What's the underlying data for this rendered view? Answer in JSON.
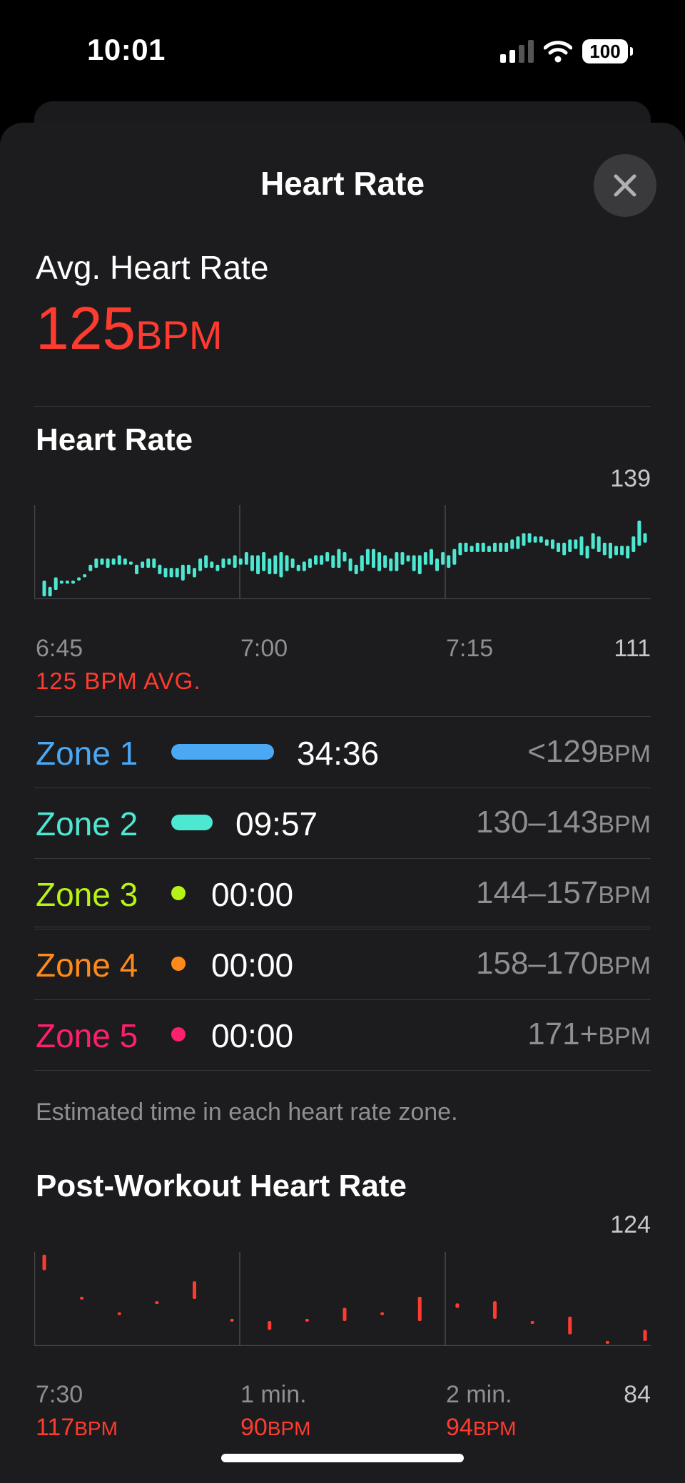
{
  "status_bar": {
    "time": "10:01",
    "battery": "100"
  },
  "sheet": {
    "title": "Heart Rate"
  },
  "average": {
    "label": "Avg. Heart Rate",
    "value": "125",
    "unit": "BPM"
  },
  "heart_rate_chart": {
    "title": "Heart Rate",
    "y_max_label": "139",
    "y_min_label": "111",
    "x_labels": [
      "6:45",
      "7:00",
      "7:15"
    ],
    "avg_caption": "125 BPM AVG.",
    "color": "#4de8d2"
  },
  "zones": [
    {
      "name": "Zone 1",
      "time": "34:36",
      "range": "<129",
      "unit": "BPM",
      "color": "#4aa8f5"
    },
    {
      "name": "Zone 2",
      "time": "09:57",
      "range": "130–143",
      "unit": "BPM",
      "color": "#4de8d2"
    },
    {
      "name": "Zone 3",
      "time": "00:00",
      "range": "144–157",
      "unit": "BPM",
      "color": "#b7f314"
    },
    {
      "name": "Zone 4",
      "time": "00:00",
      "range": "158–170",
      "unit": "BPM",
      "color": "#ff8a1c"
    },
    {
      "name": "Zone 5",
      "time": "00:00",
      "range": "171+",
      "unit": "BPM",
      "color": "#ff1f6f"
    }
  ],
  "zones_note": "Estimated time in each heart rate zone.",
  "post_workout": {
    "title": "Post-Workout Heart Rate",
    "y_max_label": "124",
    "y_min_label": "84",
    "labels": [
      {
        "time": "7:30",
        "value": "117",
        "unit": "BPM"
      },
      {
        "time": "1 min.",
        "value": "90",
        "unit": "BPM"
      },
      {
        "time": "2 min.",
        "value": "94",
        "unit": "BPM"
      }
    ],
    "color": "#ff3b2f"
  },
  "chart_data": [
    {
      "type": "bar",
      "title": "Heart Rate",
      "xlabel": "",
      "ylabel": "",
      "x_ticks": [
        "6:45",
        "7:00",
        "7:15"
      ],
      "ylim": [
        111,
        139
      ],
      "grid": true,
      "note": "min/max range bars per interval",
      "series": [
        {
          "values": [
            [
              111,
              116
            ],
            [
              111,
              114
            ],
            [
              113,
              117
            ],
            [
              115,
              116
            ],
            [
              115,
              116
            ],
            [
              115,
              116
            ],
            [
              116,
              117
            ],
            [
              117,
              118
            ],
            [
              119,
              121
            ],
            [
              120,
              123
            ],
            [
              121,
              123
            ],
            [
              120,
              123
            ],
            [
              121,
              123
            ],
            [
              121,
              124
            ],
            [
              121,
              123
            ],
            [
              121,
              122
            ],
            [
              118,
              121
            ],
            [
              120,
              122
            ],
            [
              120,
              123
            ],
            [
              120,
              123
            ],
            [
              118,
              121
            ],
            [
              117,
              120
            ],
            [
              117,
              120
            ],
            [
              117,
              120
            ],
            [
              116,
              121
            ],
            [
              118,
              121
            ],
            [
              117,
              120
            ],
            [
              119,
              123
            ],
            [
              120,
              124
            ],
            [
              120,
              122
            ],
            [
              119,
              121
            ],
            [
              120,
              123
            ],
            [
              121,
              123
            ],
            [
              120,
              124
            ],
            [
              121,
              123
            ],
            [
              121,
              125
            ],
            [
              119,
              124
            ],
            [
              118,
              124
            ],
            [
              119,
              125
            ],
            [
              118,
              123
            ],
            [
              118,
              124
            ],
            [
              117,
              125
            ],
            [
              119,
              124
            ],
            [
              120,
              123
            ],
            [
              119,
              121
            ],
            [
              119,
              122
            ],
            [
              120,
              123
            ],
            [
              121,
              124
            ],
            [
              121,
              124
            ],
            [
              122,
              125
            ],
            [
              120,
              124
            ],
            [
              120,
              126
            ],
            [
              122,
              125
            ],
            [
              119,
              123
            ],
            [
              118,
              121
            ],
            [
              119,
              124
            ],
            [
              121,
              126
            ],
            [
              120,
              126
            ],
            [
              119,
              125
            ],
            [
              120,
              124
            ],
            [
              119,
              123
            ],
            [
              119,
              125
            ],
            [
              121,
              125
            ],
            [
              122,
              124
            ],
            [
              119,
              124
            ],
            [
              118,
              124
            ],
            [
              121,
              125
            ],
            [
              121,
              126
            ],
            [
              119,
              123
            ],
            [
              121,
              125
            ],
            [
              120,
              124
            ],
            [
              121,
              126
            ],
            [
              124,
              128
            ],
            [
              125,
              128
            ],
            [
              125,
              127
            ],
            [
              125,
              128
            ],
            [
              125,
              128
            ],
            [
              125,
              127
            ],
            [
              125,
              128
            ],
            [
              125,
              128
            ],
            [
              125,
              128
            ],
            [
              126,
              129
            ],
            [
              126,
              130
            ],
            [
              127,
              131
            ],
            [
              128,
              131
            ],
            [
              128,
              130
            ],
            [
              128,
              130
            ],
            [
              127,
              129
            ],
            [
              126,
              129
            ],
            [
              125,
              128
            ],
            [
              124,
              128
            ],
            [
              125,
              129
            ],
            [
              126,
              129
            ],
            [
              124,
              130
            ],
            [
              123,
              127
            ],
            [
              126,
              131
            ],
            [
              125,
              130
            ],
            [
              124,
              128
            ],
            [
              123,
              128
            ],
            [
              124,
              127
            ],
            [
              124,
              127
            ],
            [
              123,
              127
            ],
            [
              125,
              130
            ],
            [
              127,
              135
            ],
            [
              128,
              131
            ]
          ]
        }
      ]
    },
    {
      "type": "bar",
      "title": "Post-Workout Heart Rate",
      "xlabel": "",
      "ylabel": "",
      "x_ticks": [
        "7:30",
        "1 min.",
        "2 min."
      ],
      "ylim": [
        84,
        124
      ],
      "grid": true,
      "note": "min/max range bars per interval",
      "series": [
        {
          "values": [
            [
              117,
              124
            ],
            [
              104,
              105
            ],
            [
              97,
              98
            ],
            [
              102,
              103
            ],
            [
              104,
              112
            ],
            [
              94,
              95
            ],
            [
              90,
              94
            ],
            [
              94,
              95
            ],
            [
              94,
              100
            ],
            [
              97,
              98
            ],
            [
              94,
              105
            ],
            [
              100,
              102
            ],
            [
              95,
              103
            ],
            [
              93,
              94
            ],
            [
              88,
              96
            ],
            [
              84,
              85
            ],
            [
              85,
              90
            ]
          ]
        }
      ]
    }
  ]
}
